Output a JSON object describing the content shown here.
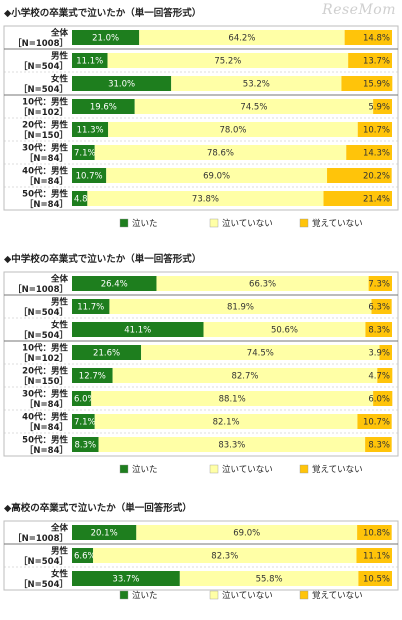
{
  "watermark": "ReseMom",
  "colors": {
    "cried": "#1e7e1e",
    "not_cried": "#ffffa6",
    "not_remember": "#ffc40a",
    "grid": "#bdbdbd"
  },
  "chart_data": [
    {
      "type": "bar",
      "stacked": "percent",
      "orientation": "horizontal",
      "title": "◆小学校の卒業式で泣いたか（単一回答形式）",
      "series": [
        {
          "name": "泣いた",
          "values": [
            21.0,
            11.1,
            31.0,
            19.6,
            11.3,
            7.1,
            10.7,
            4.8
          ]
        },
        {
          "name": "泣いていない",
          "values": [
            64.2,
            75.2,
            53.2,
            74.5,
            78.0,
            78.6,
            69.0,
            73.8
          ]
        },
        {
          "name": "覚えていない",
          "values": [
            14.8,
            13.7,
            15.9,
            5.9,
            10.7,
            14.3,
            20.2,
            21.4
          ]
        }
      ],
      "categories": [
        {
          "line1": "全体",
          "line2": "［N=1008］"
        },
        {
          "line1": "男性",
          "line2": "［N=504］"
        },
        {
          "line1": "女性",
          "line2": "［N=504］"
        },
        {
          "line1": "10代：男性",
          "line2": "［N=102］"
        },
        {
          "line1": "20代：男性",
          "line2": "［N=150］"
        },
        {
          "line1": "30代：男性",
          "line2": "［N=84］"
        },
        {
          "line1": "40代：男性",
          "line2": "［N=84］"
        },
        {
          "line1": "50代：男性",
          "line2": "［N=84］"
        }
      ],
      "separator_after": [
        0,
        2
      ],
      "legend_position": "bottom",
      "xlim": [
        0,
        100
      ]
    },
    {
      "type": "bar",
      "stacked": "percent",
      "orientation": "horizontal",
      "title": "◆中学校の卒業式で泣いたか（単一回答形式）",
      "series": [
        {
          "name": "泣いた",
          "values": [
            26.4,
            11.7,
            41.1,
            21.6,
            12.7,
            6.0,
            7.1,
            8.3
          ]
        },
        {
          "name": "泣いていない",
          "values": [
            66.3,
            81.9,
            50.6,
            74.5,
            82.7,
            88.1,
            82.1,
            83.3
          ]
        },
        {
          "name": "覚えていない",
          "values": [
            7.3,
            6.3,
            8.3,
            3.9,
            4.7,
            6.0,
            10.7,
            8.3
          ]
        }
      ],
      "categories": [
        {
          "line1": "全体",
          "line2": "［N=1008］"
        },
        {
          "line1": "男性",
          "line2": "［N=504］"
        },
        {
          "line1": "女性",
          "line2": "［N=504］"
        },
        {
          "line1": "10代：男性",
          "line2": "［N=102］"
        },
        {
          "line1": "20代：男性",
          "line2": "［N=150］"
        },
        {
          "line1": "30代：男性",
          "line2": "［N=84］"
        },
        {
          "line1": "40代：男性",
          "line2": "［N=84］"
        },
        {
          "line1": "50代：男性",
          "line2": "［N=84］"
        }
      ],
      "separator_after": [
        0,
        2
      ],
      "legend_position": "bottom",
      "xlim": [
        0,
        100
      ]
    },
    {
      "type": "bar",
      "stacked": "percent",
      "orientation": "horizontal",
      "title": "◆高校の卒業式で泣いたか（単一回答形式）",
      "series": [
        {
          "name": "泣いた",
          "values": [
            20.1,
            6.6,
            33.7
          ]
        },
        {
          "name": "泣いていない",
          "values": [
            69.0,
            82.3,
            55.8
          ]
        },
        {
          "name": "覚えていない",
          "values": [
            10.8,
            11.1,
            10.5
          ]
        }
      ],
      "categories": [
        {
          "line1": "全体",
          "line2": "［N=1008］"
        },
        {
          "line1": "男性",
          "line2": "［N=504］"
        },
        {
          "line1": "女性",
          "line2": "［N=504］"
        }
      ],
      "separator_after": [
        0
      ],
      "legend_position": "bottom",
      "xlim": [
        0,
        100
      ]
    }
  ]
}
